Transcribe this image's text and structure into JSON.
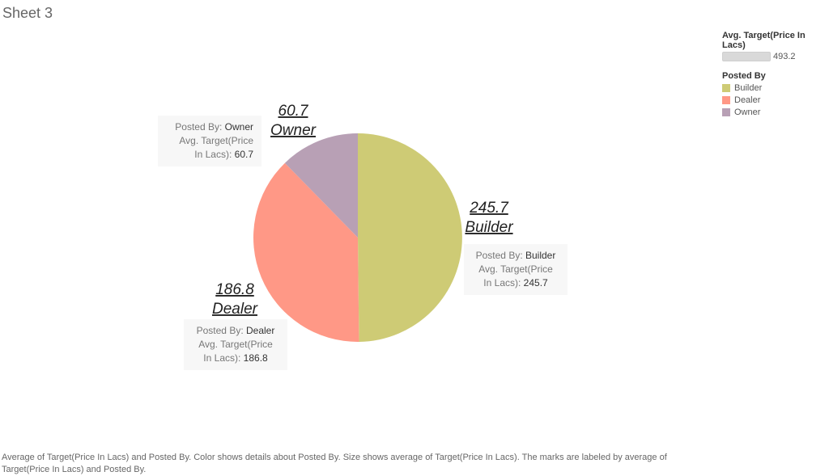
{
  "sheet_title": "Sheet 3",
  "chart_data": {
    "type": "pie",
    "categories": [
      "Builder",
      "Dealer",
      "Owner"
    ],
    "values": [
      245.7,
      186.8,
      60.7
    ],
    "colors": [
      "#cecb75",
      "#ff9886",
      "#b8a0b5"
    ],
    "legend": {
      "size_title": "Avg. Target(Price In Lacs)",
      "size_value": "493.2",
      "color_title": "Posted By",
      "placement": "top-right"
    },
    "slice_labels": [
      {
        "value": "245.7",
        "name": "Builder"
      },
      {
        "value": "186.8",
        "name": "Dealer"
      },
      {
        "value": "60.7",
        "name": "Owner"
      }
    ],
    "tooltips": [
      {
        "key_label": "Posted By:",
        "key_value": "Builder",
        "measure_line1": "Avg. Target(Price",
        "measure_line2": "In Lacs):",
        "measure_value": "245.7"
      },
      {
        "key_label": "Posted By:",
        "key_value": "Dealer",
        "measure_line1": "Avg. Target(Price",
        "measure_line2": "In Lacs):",
        "measure_value": "186.8"
      },
      {
        "key_label": "Posted By:",
        "key_value": "Owner",
        "measure_line1": "Avg. Target(Price",
        "measure_line2": "In Lacs):",
        "measure_value": "60.7"
      }
    ]
  },
  "caption": "Average of Target(Price In Lacs) and Posted By.  Color shows details about Posted By.  Size shows average of Target(Price In Lacs).  The marks are labeled by average of Target(Price In Lacs) and Posted By."
}
